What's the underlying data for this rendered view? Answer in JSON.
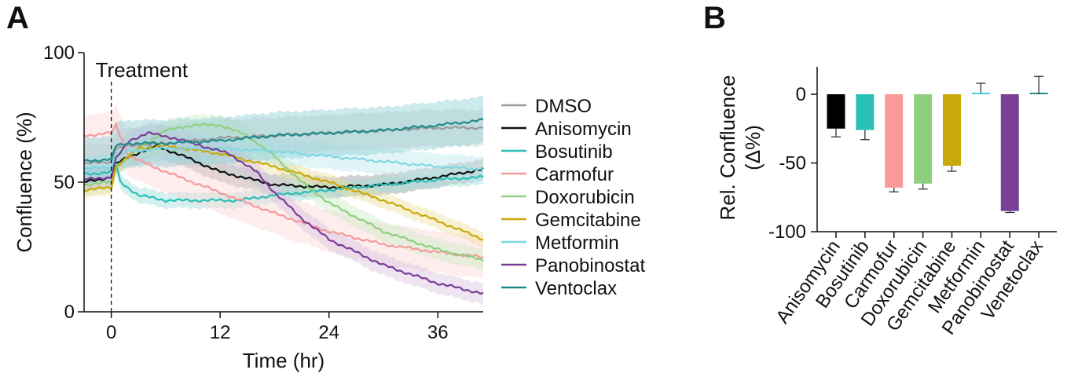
{
  "panels": {
    "a_letter": "A",
    "b_letter": "B"
  },
  "chart_data": [
    {
      "type": "line",
      "panel": "A",
      "xlabel": "Time (hr)",
      "ylabel": "Confluence (%)",
      "xlim": [
        -3,
        41
      ],
      "ylim": [
        0,
        100
      ],
      "xticks": [
        0,
        12,
        24,
        36
      ],
      "yticks": [
        0,
        50,
        100
      ],
      "grid": false,
      "legend": "right",
      "annotation": {
        "text": "Treatment",
        "x": 0
      },
      "series": [
        {
          "name": "DMSO",
          "color": "#9a9a9a",
          "band_color": "#c9c9c9",
          "band": 7,
          "x": [
            -3,
            0,
            0.5,
            2,
            6,
            12,
            18,
            24,
            30,
            36,
            41
          ],
          "y": [
            57,
            58,
            63,
            64,
            65,
            67,
            68,
            69,
            70,
            71,
            71
          ]
        },
        {
          "name": "Anisomycin",
          "color": "#111111",
          "band_color": "#9a9a9a",
          "band": 4,
          "x": [
            -3,
            0,
            0.5,
            2,
            5,
            8,
            12,
            18,
            24,
            30,
            36,
            41
          ],
          "y": [
            50,
            52,
            57,
            60,
            64,
            60,
            54,
            49,
            48,
            49,
            52,
            55
          ]
        },
        {
          "name": "Bosutinib",
          "color": "#2abfb7",
          "band_color": "#9fe0db",
          "band": 3,
          "x": [
            -3,
            0,
            0.3,
            1,
            3,
            6,
            10,
            14,
            18,
            24,
            30,
            36,
            41
          ],
          "y": [
            53,
            54,
            60,
            50,
            45,
            43,
            43,
            43,
            45,
            47,
            49,
            51,
            52
          ]
        },
        {
          "name": "Carmofur",
          "color": "#f59a9a",
          "band_color": "#fcd6d6",
          "band": 8,
          "x": [
            -3,
            0,
            0.5,
            2,
            6,
            12,
            18,
            24,
            30,
            36,
            41
          ],
          "y": [
            68,
            69,
            72,
            60,
            54,
            46,
            38,
            31,
            26,
            23,
            21
          ]
        },
        {
          "name": "Doxorubicin",
          "color": "#8fd080",
          "band_color": "#cdebc6",
          "band": 4,
          "x": [
            -3,
            0,
            0.5,
            3,
            6,
            9,
            12,
            15,
            18,
            21,
            24,
            30,
            36,
            41
          ],
          "y": [
            49,
            50,
            56,
            63,
            70,
            72,
            72,
            68,
            60,
            50,
            42,
            31,
            24,
            20
          ]
        },
        {
          "name": "Gemcitabine",
          "color": "#c9a90a",
          "band_color": "#ecdf9c",
          "band": 3,
          "x": [
            -3,
            0,
            0.5,
            3,
            6,
            12,
            18,
            24,
            30,
            36,
            41
          ],
          "y": [
            47,
            48,
            56,
            63,
            64,
            61,
            56,
            50,
            43,
            35,
            28
          ]
        },
        {
          "name": "Metformin",
          "color": "#7fd8e0",
          "band_color": "#bde9ee",
          "band": 5,
          "x": [
            -3,
            0,
            0.5,
            2,
            6,
            12,
            18,
            24,
            30,
            36,
            41
          ],
          "y": [
            55,
            56,
            61,
            62,
            63,
            63,
            62,
            60,
            58,
            56,
            55
          ]
        },
        {
          "name": "Panobinostat",
          "color": "#7a3f96",
          "band_color": "#d9c3e3",
          "band": 4,
          "x": [
            -3,
            0,
            0.5,
            2,
            4,
            7,
            10,
            13,
            16,
            18,
            21,
            24,
            30,
            36,
            41
          ],
          "y": [
            51,
            52,
            59,
            66,
            69,
            67,
            64,
            61,
            54,
            46,
            36,
            28,
            18,
            11,
            7
          ]
        },
        {
          "name": "Ventoclax",
          "color": "#1f8a8c",
          "band_color": "#8ecfd4",
          "band": 9,
          "x": [
            -3,
            0,
            0.5,
            2,
            6,
            12,
            18,
            24,
            30,
            36,
            41
          ],
          "y": [
            58,
            59,
            64,
            65,
            65,
            66,
            68,
            69,
            70,
            72,
            74
          ]
        }
      ]
    },
    {
      "type": "bar",
      "panel": "B",
      "ylabel": "Rel. Confluence (Δ%)",
      "ylim": [
        -100,
        20
      ],
      "yticks": [
        0,
        -50,
        -100
      ],
      "grid": false,
      "categories": [
        "Anisomycin",
        "Bosutinib",
        "Carmofur",
        "Doxorubicin",
        "Gemcitabine",
        "Metformin",
        "Panobinostat",
        "Venetoclax"
      ],
      "values": [
        -25,
        -26,
        -68,
        -65,
        -52,
        1,
        -85,
        0
      ],
      "errors": [
        6,
        7,
        3,
        4,
        4,
        7,
        1,
        13
      ],
      "colors": [
        "#000000",
        "#2abfb7",
        "#f99a9a",
        "#8fd080",
        "#c9a90a",
        "#3fd0d8",
        "#7a3f96",
        "#1f8a8c"
      ]
    }
  ]
}
